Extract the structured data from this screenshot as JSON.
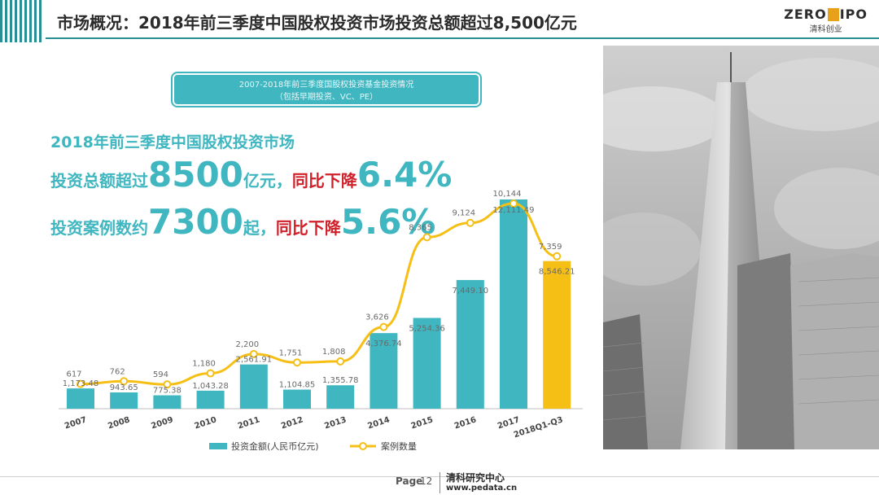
{
  "header": {
    "title": "市场概况：2018年前三季度中国股权投资市场投资总额超过8,500亿元",
    "logo_top_left": "ZERO",
    "logo_top_mid": "2",
    "logo_top_right": "IPO",
    "logo_bottom": "清科创业"
  },
  "subtitle": {
    "line1": "2007-2018年前三季度国股权投资基金投资情况",
    "line2": "（包括早期投资、VC、PE）"
  },
  "headline": {
    "line1": "2018年前三季度中国股权投资市场",
    "line2_prefix": "投资总额超过",
    "line2_big": "8500",
    "line2_unit": "亿元，",
    "line2_red": "同比下降",
    "line2_pct": "6.4%",
    "line3_prefix": "投资案例数约",
    "line3_big": "7300",
    "line3_unit": "起，",
    "line3_red": "同比下降",
    "line3_pct": "5.6%"
  },
  "colors": {
    "bar": "#3fb6c0",
    "bar_highlight": "#f5bf16",
    "line": "#f5bf16",
    "accent": "#2a8f95",
    "red": "#d0202a"
  },
  "chart_data": {
    "type": "bar",
    "categories": [
      "2007",
      "2008",
      "2009",
      "2010",
      "2011",
      "2012",
      "2013",
      "2014",
      "2015",
      "2016",
      "2017",
      "2018Q1-Q3"
    ],
    "series": [
      {
        "name": "投资金额(人民币亿元)",
        "type": "bar",
        "values": [
          1173.48,
          943.65,
          775.38,
          1043.28,
          2561.91,
          1104.85,
          1355.78,
          4376.74,
          5254.36,
          7449.1,
          12111.49,
          8546.21
        ],
        "labels": [
          "1,173.48",
          "943.65",
          "775.38",
          "1,043.28",
          "2,561.91",
          "1,104.85",
          "1,355.78",
          "4,376.74",
          "5,254.36",
          "7,449.10",
          "12,111.49",
          "8,546.21"
        ]
      },
      {
        "name": "案例数量",
        "type": "line",
        "values": [
          617,
          762,
          594,
          1180,
          2200,
          1751,
          1808,
          3626,
          8365,
          9124,
          10144,
          7359
        ],
        "labels": [
          "617",
          "762",
          "594",
          "1,180",
          "2,200",
          "1,751",
          "1,808",
          "3,626",
          "8,365",
          "9,124",
          "10,144",
          "7,359"
        ]
      }
    ],
    "legend_position": "bottom",
    "grid": false
  },
  "photo": {
    "icon": "skyscraper-photo"
  },
  "footer": {
    "page_label": "Page",
    "page_number": "12",
    "org": "清科研究中心",
    "url": "www.pedata.cn"
  }
}
